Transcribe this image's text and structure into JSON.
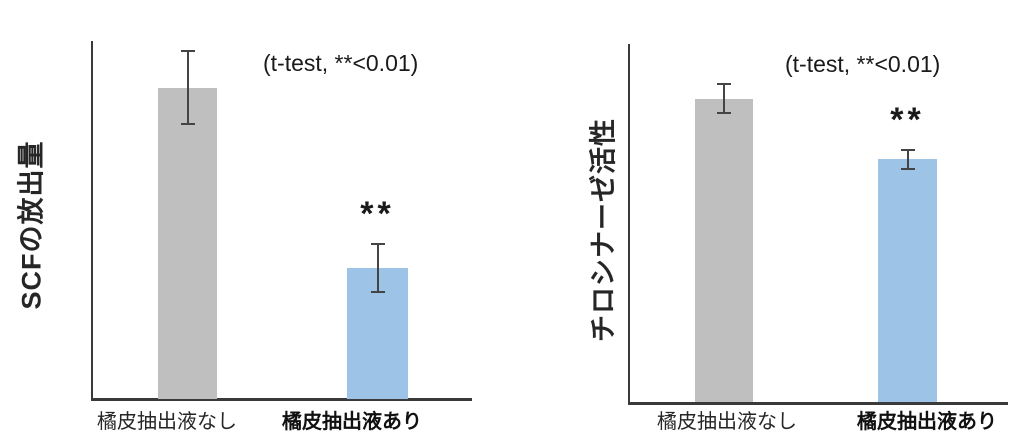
{
  "chart_data": [
    {
      "type": "bar",
      "ylabel": "SCFの放出量",
      "annotation": "(t-test, **<0.01)",
      "categories": [
        "橘皮抽出液なし",
        "橘皮抽出液あり"
      ],
      "values": [
        100,
        42
      ],
      "errors": [
        12,
        8
      ],
      "ylim": [
        0,
        115
      ],
      "bar_colors": [
        "#bfbfbf",
        "#9dc3e6"
      ],
      "significance": [
        null,
        "**"
      ],
      "grid": false,
      "legend": false,
      "x_tick_bold": [
        false,
        true
      ]
    },
    {
      "type": "bar",
      "ylabel": "チロシナーゼ活性",
      "annotation": "(t-test, **<0.01)",
      "categories": [
        "橘皮抽出液なし",
        "橘皮抽出液あり"
      ],
      "values": [
        100,
        80
      ],
      "errors": [
        5,
        3.5
      ],
      "ylim": [
        0,
        118
      ],
      "bar_colors": [
        "#bfbfbf",
        "#9dc3e6"
      ],
      "significance": [
        null,
        "**"
      ],
      "grid": false,
      "legend": false,
      "x_tick_bold": [
        false,
        true
      ]
    }
  ],
  "colors": {
    "bar_control": "#bfbfbf",
    "bar_treated": "#9dc3e6",
    "axis": "#3a3a3a",
    "error_bar": "#444444",
    "text": "#1a1a1a"
  }
}
